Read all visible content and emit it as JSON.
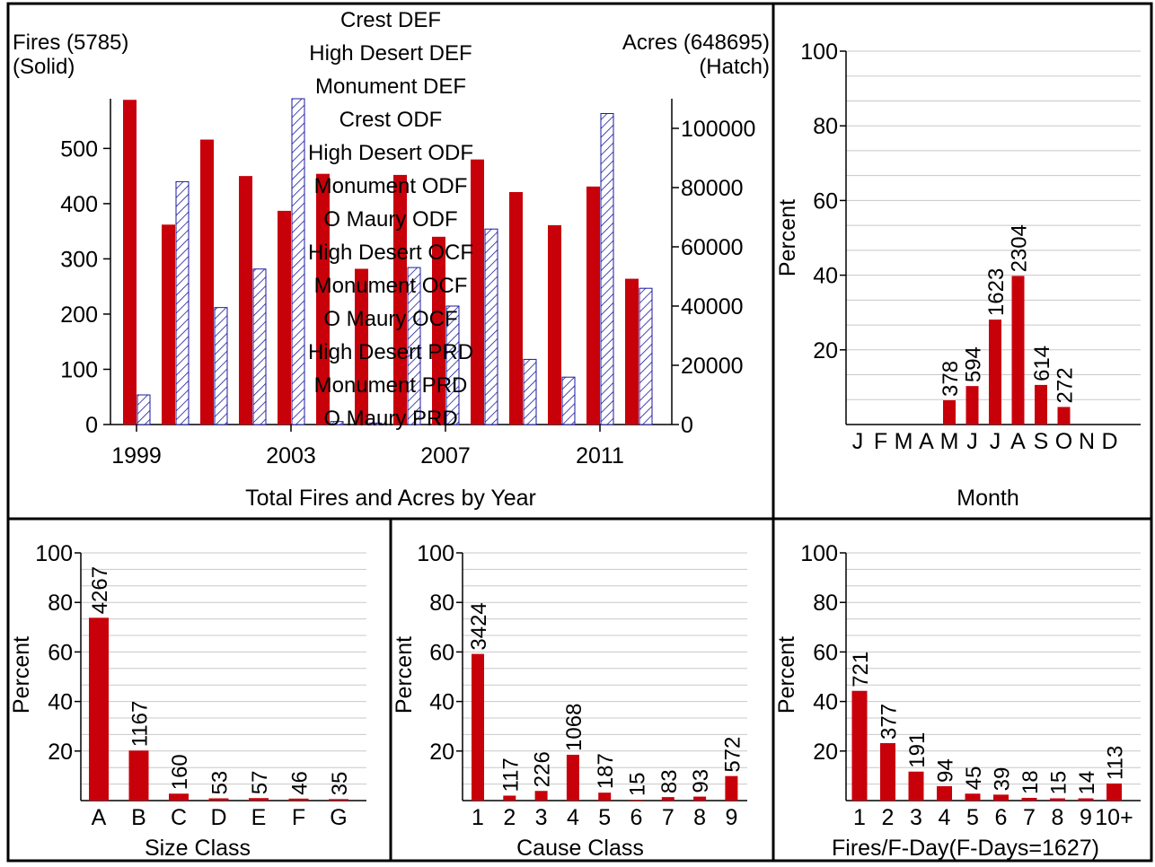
{
  "colors": {
    "fire_bar": "#c8000a",
    "acre_hatch": "#1a1aa0",
    "grid": "#c8c8c8"
  },
  "main": {
    "left_label": "Fires (5785)",
    "left_sub": "(Solid)",
    "right_label": "Acres (648695)",
    "right_sub": "(Hatch)",
    "units_list": [
      "Crest DEF",
      "High Desert DEF",
      "Monument DEF",
      "Crest ODF",
      "High Desert ODF",
      "Monument ODF",
      "O Maury ODF",
      "High Desert OCF",
      "Monument OCF",
      "O Maury OCF",
      "High Desert PRD",
      "Monument PRD",
      "O Maury PRD"
    ],
    "xlabel": "Total Fires and Acres by Year"
  },
  "chart_data": [
    {
      "type": "bar",
      "xlabel": "Total Fires and Acres by Year",
      "x": [
        1999,
        2000,
        2001,
        2002,
        2003,
        2004,
        2005,
        2006,
        2007,
        2008,
        2009,
        2010,
        2011,
        2012
      ],
      "x_ticks": [
        "1999",
        "2003",
        "2007",
        "2011"
      ],
      "series": [
        {
          "name": "Fires (5785)",
          "style": "solid",
          "axis": "left",
          "values": [
            588,
            362,
            516,
            450,
            387,
            454,
            282,
            452,
            340,
            480,
            421,
            361,
            431,
            264
          ]
        },
        {
          "name": "Acres (648695)",
          "style": "hatch",
          "axis": "right",
          "values": [
            10000,
            82000,
            39500,
            52500,
            110000,
            1000,
            500,
            53000,
            40000,
            66000,
            22000,
            16000,
            105000,
            46000
          ]
        }
      ],
      "ylim_left": [
        0,
        590
      ],
      "yticks_left": [
        0,
        100,
        200,
        300,
        400,
        500
      ],
      "ylim_right": [
        0,
        110000
      ],
      "yticks_right": [
        0,
        20000,
        40000,
        60000,
        80000,
        100000
      ]
    },
    {
      "type": "bar",
      "xlabel": "Month",
      "ylabel": "Percent",
      "categories": [
        "J",
        "F",
        "M",
        "A",
        "M",
        "J",
        "J",
        "A",
        "S",
        "O",
        "N",
        "D"
      ],
      "values": [
        0,
        0,
        0,
        0,
        6.5,
        10.3,
        28.1,
        39.8,
        10.6,
        4.7,
        0,
        0
      ],
      "labels": [
        "",
        "",
        "",
        "",
        "378",
        "594",
        "1623",
        "2304",
        "614",
        "272",
        "",
        ""
      ],
      "ylim": [
        0,
        100
      ],
      "yticks": [
        20,
        40,
        60,
        80,
        100
      ]
    },
    {
      "type": "bar",
      "xlabel": "Size Class",
      "ylabel": "Percent",
      "categories": [
        "A",
        "B",
        "C",
        "D",
        "E",
        "F",
        "G"
      ],
      "values": [
        73.8,
        20.2,
        2.8,
        0.9,
        1.0,
        0.8,
        0.6
      ],
      "labels": [
        "4267",
        "1167",
        "160",
        "53",
        "57",
        "46",
        "35"
      ],
      "ylim": [
        0,
        100
      ],
      "yticks": [
        20,
        40,
        60,
        80,
        100
      ]
    },
    {
      "type": "bar",
      "xlabel": "Cause Class",
      "ylabel": "Percent",
      "categories": [
        "1",
        "2",
        "3",
        "4",
        "5",
        "6",
        "7",
        "8",
        "9"
      ],
      "values": [
        59.2,
        2.0,
        3.9,
        18.5,
        3.2,
        0.3,
        1.4,
        1.6,
        9.9
      ],
      "labels": [
        "3424",
        "117",
        "226",
        "1068",
        "187",
        "15",
        "83",
        "93",
        "572"
      ],
      "ylim": [
        0,
        100
      ],
      "yticks": [
        20,
        40,
        60,
        80,
        100
      ]
    },
    {
      "type": "bar",
      "xlabel": "Fires/F-Day(F-Days=1627)",
      "ylabel": "Percent",
      "categories": [
        "1",
        "2",
        "3",
        "4",
        "5",
        "6",
        "7",
        "8",
        "9",
        "10+"
      ],
      "values": [
        44.3,
        23.2,
        11.7,
        5.8,
        2.8,
        2.4,
        1.1,
        0.9,
        0.9,
        6.9
      ],
      "labels": [
        "721",
        "377",
        "191",
        "94",
        "45",
        "39",
        "18",
        "15",
        "14",
        "113"
      ],
      "ylim": [
        0,
        100
      ],
      "yticks": [
        20,
        40,
        60,
        80,
        100
      ]
    }
  ]
}
